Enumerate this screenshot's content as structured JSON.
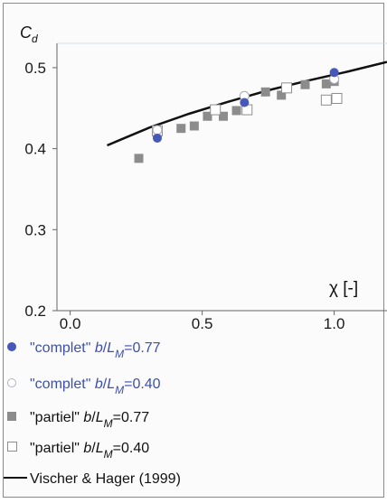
{
  "chart_data": {
    "type": "scatter",
    "ylabel_main": "C",
    "ylabel_sub": "d",
    "xlabel": "χ [-]",
    "xlim": [
      -0.05,
      1.2
    ],
    "ylim": [
      0.2,
      0.53
    ],
    "xticks": [
      0.0,
      0.5,
      1.0
    ],
    "xtick_labels": [
      "0.0",
      "0.5",
      "1.0"
    ],
    "yticks": [
      0.2,
      0.3,
      0.4,
      0.5
    ],
    "ytick_labels": [
      "0.2",
      "0.3",
      "0.4",
      "0.5"
    ],
    "grid": false,
    "legend_position": "below",
    "colors": {
      "complete": "#4658b8",
      "partial_fill": "#8c8c8c",
      "open_edge": "#8e8e8e",
      "curve": "#111111",
      "axis": "#666666"
    },
    "series": [
      {
        "name_main": "\"complet\" ",
        "name_b": "b",
        "name_slash": "/",
        "name_L": "L",
        "name_sub": "M",
        "name_val": "=0.77",
        "marker": "filled-circle",
        "points": [
          [
            0.33,
            0.413
          ],
          [
            0.66,
            0.457
          ],
          [
            1.0,
            0.494
          ]
        ]
      },
      {
        "name_main": "\"complet\" ",
        "name_b": "b",
        "name_slash": "/",
        "name_L": "L",
        "name_sub": "M",
        "name_val": "=0.40",
        "marker": "open-circle",
        "points": [
          [
            0.33,
            0.423
          ],
          [
            0.66,
            0.465
          ],
          [
            1.0,
            0.486
          ]
        ]
      },
      {
        "name_main": "\"partiel\" ",
        "name_b": "b",
        "name_slash": "/",
        "name_L": "L",
        "name_sub": "M",
        "name_val": "=0.77",
        "marker": "filled-square",
        "points": [
          [
            0.26,
            0.388
          ],
          [
            0.33,
            0.42
          ],
          [
            0.42,
            0.425
          ],
          [
            0.47,
            0.428
          ],
          [
            0.52,
            0.44
          ],
          [
            0.58,
            0.44
          ],
          [
            0.63,
            0.447
          ],
          [
            0.74,
            0.47
          ],
          [
            0.8,
            0.466
          ],
          [
            0.89,
            0.479
          ],
          [
            0.97,
            0.48
          ],
          [
            1.0,
            0.483
          ]
        ]
      },
      {
        "name_main": "\"partiel\" ",
        "name_b": "b",
        "name_slash": "/",
        "name_L": "L",
        "name_sub": "M",
        "name_val": "=0.40",
        "marker": "open-square",
        "points": [
          [
            0.33,
            0.422
          ],
          [
            0.55,
            0.448
          ],
          [
            0.67,
            0.448
          ],
          [
            0.82,
            0.475
          ],
          [
            0.97,
            0.46
          ],
          [
            1.01,
            0.462
          ]
        ]
      },
      {
        "name": "Vischer & Hager (1999)",
        "marker": "line",
        "points": [
          [
            0.14,
            0.404
          ],
          [
            0.3,
            0.426
          ],
          [
            0.45,
            0.443
          ],
          [
            0.6,
            0.458
          ],
          [
            0.75,
            0.472
          ],
          [
            0.9,
            0.484
          ],
          [
            1.05,
            0.495
          ],
          [
            1.2,
            0.507
          ]
        ]
      }
    ]
  }
}
